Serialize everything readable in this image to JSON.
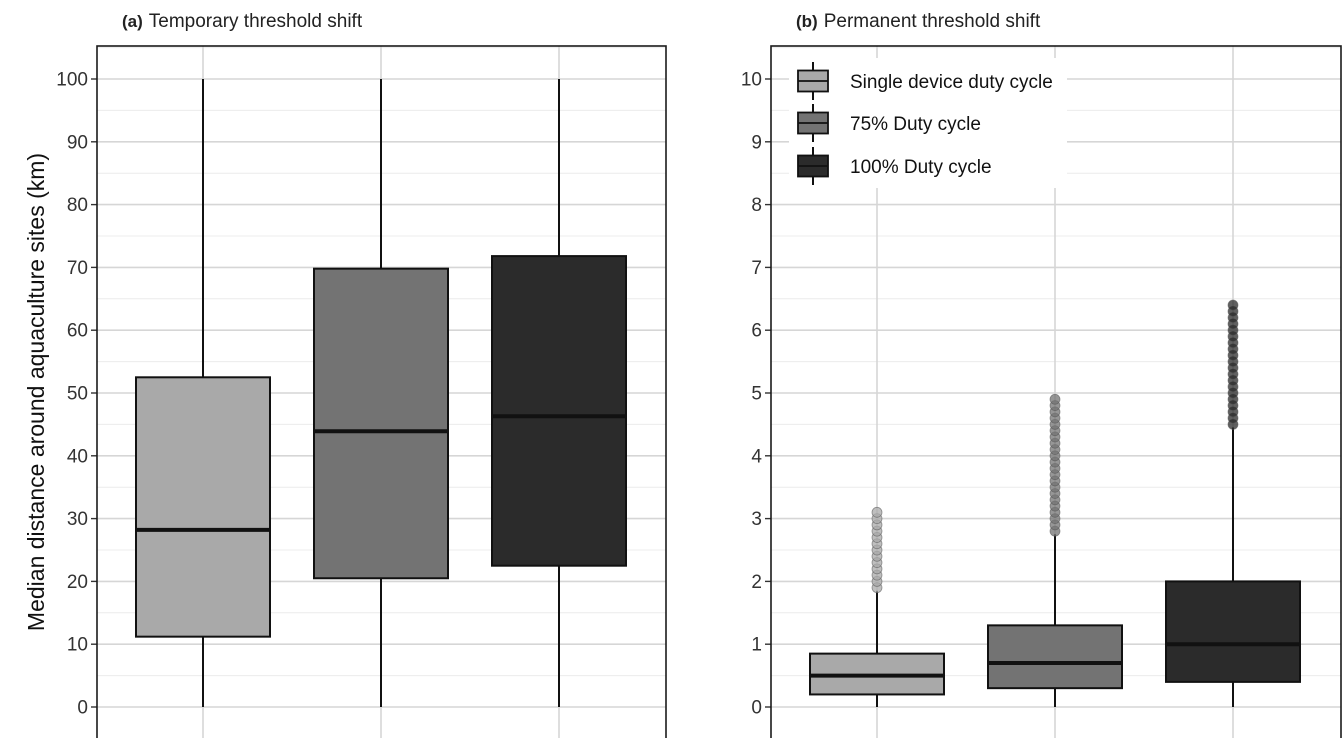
{
  "figure": {
    "ylabel": "Median distance around aquaculture sites (km)"
  },
  "colors": {
    "single": "#a9a9a9",
    "duty75": "#737373",
    "duty100": "#2b2b2b",
    "grid_major": "#d6d6d6",
    "grid_minor": "#ececec",
    "stroke": "#111111"
  },
  "legend": {
    "items": [
      {
        "label": "Single device duty cycle",
        "color": "#a9a9a9"
      },
      {
        "label": "75% Duty cycle",
        "color": "#737373"
      },
      {
        "label": "100% Duty cycle",
        "color": "#2b2b2b"
      }
    ]
  },
  "chart_data": [
    {
      "type": "box",
      "panel": "(a)",
      "title": "Temporary threshold shift",
      "ylim": [
        -5,
        105
      ],
      "yticks": [
        0,
        10,
        20,
        30,
        40,
        50,
        60,
        70,
        80,
        90,
        100
      ],
      "grid": true,
      "legend": "none",
      "boxes": [
        {
          "series": "Single device duty cycle",
          "color": "#a9a9a9",
          "whisker_low": 0,
          "q1": 11.2,
          "median": 28.2,
          "q3": 52.5,
          "whisker_high": 100,
          "outliers": []
        },
        {
          "series": "75% Duty cycle",
          "color": "#737373",
          "whisker_low": 0,
          "q1": 20.5,
          "median": 43.9,
          "q3": 69.8,
          "whisker_high": 100,
          "outliers": []
        },
        {
          "series": "100% Duty cycle",
          "color": "#2b2b2b",
          "whisker_low": 0,
          "q1": 22.5,
          "median": 46.3,
          "q3": 71.8,
          "whisker_high": 100,
          "outliers": []
        }
      ]
    },
    {
      "type": "box",
      "panel": "(b)",
      "title": "Permanent threshold shift",
      "ylim": [
        -0.5,
        10.5
      ],
      "yticks": [
        0,
        1,
        2,
        3,
        4,
        5,
        6,
        7,
        8,
        9,
        10
      ],
      "grid": true,
      "legend": "top-left",
      "boxes": [
        {
          "series": "Single device duty cycle",
          "color": "#a9a9a9",
          "whisker_low": 0,
          "q1": 0.2,
          "median": 0.5,
          "q3": 0.85,
          "whisker_high": 1.85,
          "outliers": [
            1.9,
            2.0,
            2.1,
            2.2,
            2.3,
            2.4,
            2.5,
            2.6,
            2.7,
            2.8,
            2.9,
            3.0,
            3.1
          ]
        },
        {
          "series": "75% Duty cycle",
          "color": "#737373",
          "whisker_low": 0,
          "q1": 0.3,
          "median": 0.7,
          "q3": 1.3,
          "whisker_high": 2.75,
          "outliers": [
            2.8,
            2.9,
            3.0,
            3.1,
            3.2,
            3.3,
            3.4,
            3.5,
            3.6,
            3.7,
            3.8,
            3.9,
            4.0,
            4.1,
            4.2,
            4.3,
            4.4,
            4.5,
            4.6,
            4.7,
            4.8,
            4.9
          ]
        },
        {
          "series": "100% Duty cycle",
          "color": "#2b2b2b",
          "whisker_low": 0,
          "q1": 0.4,
          "median": 1.0,
          "q3": 2.0,
          "whisker_high": 4.45,
          "outliers": [
            4.5,
            4.6,
            4.7,
            4.8,
            4.9,
            5.0,
            5.1,
            5.2,
            5.3,
            5.4,
            5.5,
            5.6,
            5.7,
            5.8,
            5.9,
            6.0,
            6.1,
            6.2,
            6.3,
            6.4
          ]
        }
      ]
    }
  ]
}
